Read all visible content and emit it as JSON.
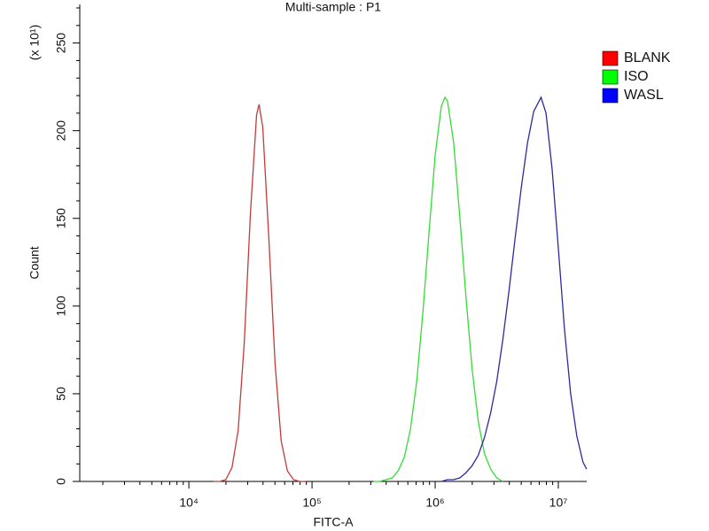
{
  "chart_data": {
    "type": "line",
    "title": "Multi-sample : P1",
    "xlabel": "FITC-A",
    "ylabel": "Count",
    "ymultiplier": "(x 10¹)",
    "xscale": "log",
    "xlim": [
      1300,
      17000000
    ],
    "xticks": [
      {
        "value": 10000,
        "label": "10⁴"
      },
      {
        "value": 100000,
        "label": "10⁵"
      },
      {
        "value": 1000000,
        "label": "10⁶"
      },
      {
        "value": 10000000,
        "label": "10⁷"
      }
    ],
    "xminorticks": [
      2000,
      3000,
      4000,
      5000,
      6000,
      7000,
      8000,
      9000,
      20000,
      30000,
      40000,
      50000,
      60000,
      70000,
      80000,
      90000,
      200000,
      300000,
      400000,
      500000,
      600000,
      700000,
      800000,
      900000,
      2000000,
      3000000,
      4000000,
      5000000,
      6000000,
      7000000,
      8000000,
      9000000
    ],
    "ylim": [
      0,
      272
    ],
    "yticks": [
      0,
      50,
      100,
      150,
      200,
      250
    ],
    "yminorticks": [
      10,
      20,
      30,
      40,
      60,
      70,
      80,
      90,
      110,
      120,
      130,
      140,
      160,
      170,
      180,
      190,
      210,
      220,
      230,
      240,
      260,
      270
    ],
    "legend": "right",
    "series": [
      {
        "name": "BLANK",
        "color": "#c23b3b",
        "swatch": "#ff0000",
        "x": [
          15849,
          17783,
          19953,
          22387,
          25119,
          28184,
          31623,
          35481,
          37154,
          39811,
          44668,
          50119,
          56234,
          63096,
          70795,
          79433,
          89125
        ],
        "values": [
          0,
          0,
          1,
          8,
          29,
          79,
          153,
          209,
          215,
          202,
          138,
          67,
          23,
          6,
          1,
          0,
          0
        ]
      },
      {
        "name": "ISO",
        "color": "#33dd33",
        "swatch": "#00ff00",
        "x": [
          316228,
          354813,
          398107,
          446684,
          501187,
          562341,
          630957,
          707946,
          794328,
          891251,
          1000000,
          1122018,
          1202264,
          1258925,
          1412538,
          1584893,
          1778279,
          1995262,
          2238721,
          2511886,
          2818383,
          3162278,
          3548134
        ],
        "values": [
          0,
          0,
          1,
          2,
          6,
          14,
          30,
          57,
          96,
          142,
          186,
          214,
          219,
          217,
          193,
          151,
          105,
          64,
          34,
          16,
          7,
          2,
          0
        ]
      },
      {
        "name": "WASL",
        "color": "#2b2ba0",
        "swatch": "#0000ff",
        "x": [
          1122018,
          1258925,
          1412538,
          1584893,
          1778279,
          1995262,
          2238721,
          2511886,
          2818383,
          3162278,
          3548134,
          3981072,
          4466836,
          5011872,
          5623413,
          6309573,
          7244360,
          7943282,
          8912509,
          10000000,
          11220185,
          12589254,
          14125375,
          15848932,
          16982437
        ],
        "values": [
          0,
          1,
          1,
          2,
          5,
          9,
          15,
          25,
          39,
          57,
          81,
          109,
          139,
          168,
          193,
          211,
          219,
          210,
          178,
          133,
          87,
          50,
          26,
          11,
          7
        ]
      }
    ]
  }
}
